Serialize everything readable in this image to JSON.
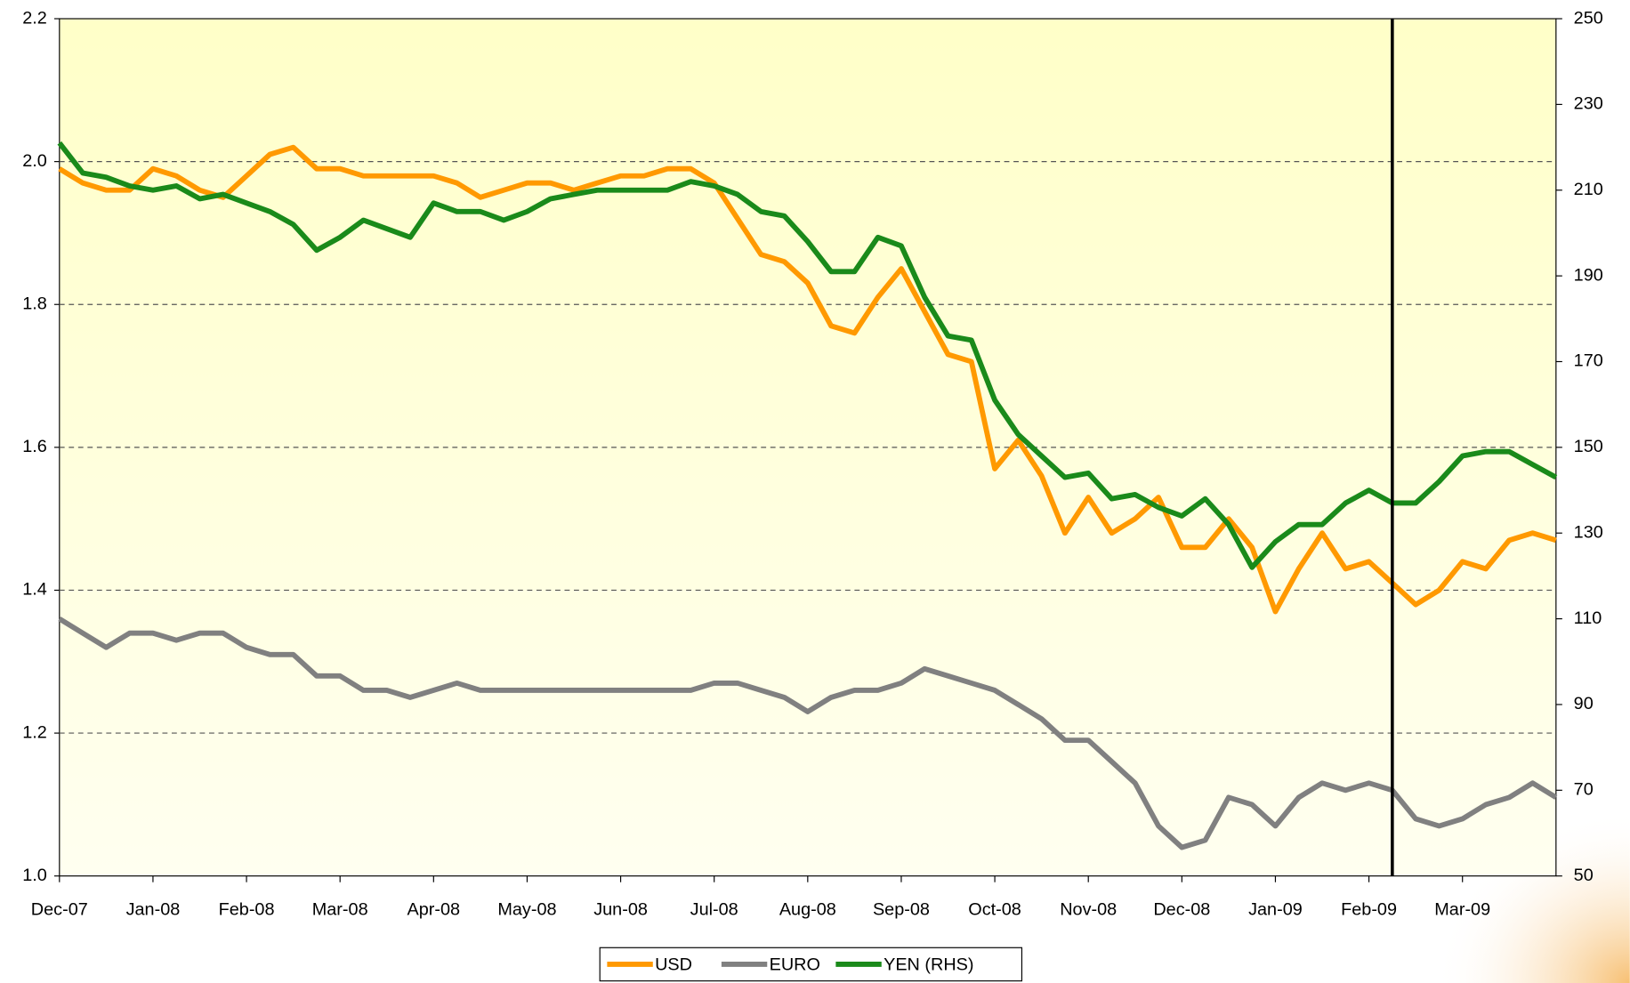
{
  "chart_data": {
    "type": "line",
    "x": [
      0,
      0.25,
      0.5,
      0.75,
      1,
      1.25,
      1.5,
      1.75,
      2,
      2.25,
      2.5,
      2.75,
      3,
      3.25,
      3.5,
      3.75,
      4,
      4.25,
      4.5,
      4.75,
      5,
      5.25,
      5.5,
      5.75,
      6,
      6.25,
      6.5,
      6.75,
      7,
      7.25,
      7.5,
      7.75,
      8,
      8.25,
      8.5,
      8.75,
      9,
      9.25,
      9.5,
      9.75,
      10,
      10.25,
      10.5,
      10.75,
      11,
      11.25,
      11.5,
      11.75,
      12,
      12.25,
      12.5,
      12.75,
      13,
      13.25,
      13.5,
      13.75,
      14,
      14.25,
      14.5,
      14.75,
      15,
      15.25,
      15.5,
      15.75,
      16
    ],
    "xlim": [
      0,
      16
    ],
    "xticks": [
      {
        "value": 0,
        "label": "Dec-07"
      },
      {
        "value": 1,
        "label": "Jan-08"
      },
      {
        "value": 2,
        "label": "Feb-08"
      },
      {
        "value": 3,
        "label": "Mar-08"
      },
      {
        "value": 4,
        "label": "Apr-08"
      },
      {
        "value": 5,
        "label": "May-08"
      },
      {
        "value": 6,
        "label": "Jun-08"
      },
      {
        "value": 7,
        "label": "Jul-08"
      },
      {
        "value": 8,
        "label": "Aug-08"
      },
      {
        "value": 9,
        "label": "Sep-08"
      },
      {
        "value": 10,
        "label": "Oct-08"
      },
      {
        "value": 11,
        "label": "Nov-08"
      },
      {
        "value": 12,
        "label": "Dec-08"
      },
      {
        "value": 13,
        "label": "Jan-09"
      },
      {
        "value": 14,
        "label": "Feb-09"
      },
      {
        "value": 15,
        "label": "Mar-09"
      }
    ],
    "ylim": [
      1.0,
      2.2
    ],
    "yticks": [
      {
        "value": 1.0,
        "label": "1.0"
      },
      1.2,
      1.4,
      1.6,
      1.8,
      {
        "value": 2.0,
        "label": "2.0"
      },
      2.2
    ],
    "y2lim": [
      50,
      250
    ],
    "y2ticks": [
      50,
      70,
      90,
      110,
      130,
      150,
      170,
      190,
      210,
      230,
      250
    ],
    "grid": true,
    "vline": 14.25,
    "series": [
      {
        "name": "USD",
        "color": "#ff9900",
        "values": [
          1.99,
          1.97,
          1.96,
          1.96,
          1.99,
          1.98,
          1.96,
          1.95,
          1.98,
          2.01,
          2.02,
          1.99,
          1.99,
          1.98,
          1.98,
          1.98,
          1.98,
          1.97,
          1.95,
          1.96,
          1.97,
          1.97,
          1.96,
          1.97,
          1.98,
          1.98,
          1.99,
          1.99,
          1.97,
          1.92,
          1.87,
          1.86,
          1.83,
          1.77,
          1.76,
          1.81,
          1.85,
          1.79,
          1.73,
          1.72,
          1.57,
          1.61,
          1.56,
          1.48,
          1.53,
          1.48,
          1.5,
          1.53,
          1.46,
          1.46,
          1.5,
          1.46,
          1.37,
          1.43,
          1.48,
          1.43,
          1.44,
          1.41,
          1.38,
          1.4,
          1.44,
          1.43,
          1.47,
          1.48,
          1.47
        ]
      },
      {
        "name": "EURO",
        "color": "#808080",
        "values": [
          1.36,
          1.34,
          1.32,
          1.34,
          1.34,
          1.33,
          1.34,
          1.34,
          1.32,
          1.31,
          1.31,
          1.28,
          1.28,
          1.26,
          1.26,
          1.25,
          1.26,
          1.27,
          1.26,
          1.26,
          1.26,
          1.26,
          1.26,
          1.26,
          1.26,
          1.26,
          1.26,
          1.26,
          1.27,
          1.27,
          1.26,
          1.25,
          1.23,
          1.25,
          1.26,
          1.26,
          1.27,
          1.29,
          1.28,
          1.27,
          1.26,
          1.24,
          1.22,
          1.19,
          1.19,
          1.16,
          1.13,
          1.07,
          1.04,
          1.05,
          1.11,
          1.1,
          1.07,
          1.11,
          1.13,
          1.12,
          1.13,
          1.12,
          1.08,
          1.07,
          1.08,
          1.1,
          1.11,
          1.13,
          1.11
        ]
      },
      {
        "name": "YEN (RHS)",
        "color": "#1a8a1a",
        "axis": "y2",
        "values": [
          221,
          214,
          213,
          211,
          210,
          211,
          208,
          209,
          207,
          205,
          202,
          196,
          199,
          203,
          201,
          199,
          207,
          205,
          205,
          203,
          205,
          208,
          209,
          210,
          210,
          210,
          210,
          212,
          211,
          209,
          205,
          204,
          198,
          191,
          191,
          199,
          197,
          185,
          176,
          175,
          161,
          153,
          148,
          143,
          144,
          138,
          139,
          136,
          134,
          138,
          132,
          122,
          128,
          132,
          132,
          137,
          140,
          137,
          137,
          142,
          148,
          149,
          149,
          146,
          143
        ]
      }
    ]
  }
}
